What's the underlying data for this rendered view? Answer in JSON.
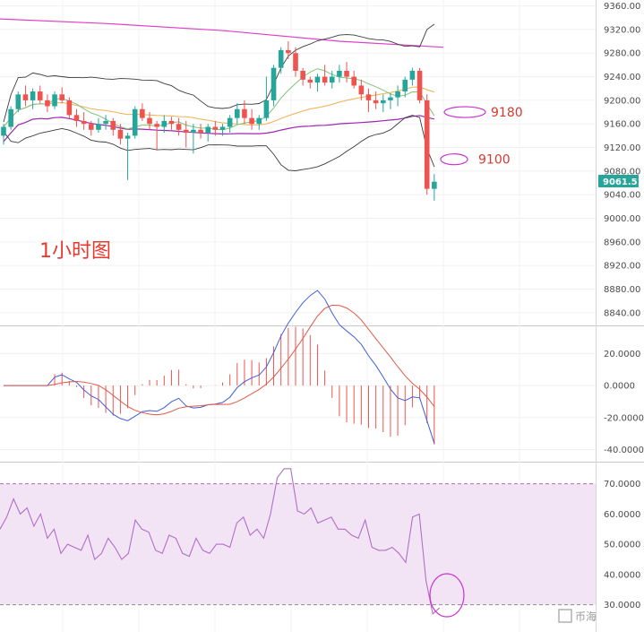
{
  "chart_data": [
    {
      "type": "candlestick",
      "title": "1小时图",
      "y_ticks": [
        "9360.00",
        "9320.00",
        "9280.00",
        "9240.00",
        "9200.00",
        "9160.00",
        "9120.00",
        "9080.00",
        "9040.00",
        "9000.00",
        "8960.00",
        "8920.00",
        "8880.00",
        "8840.00"
      ],
      "ylim": [
        8820,
        9370
      ],
      "last_price": "9061.51",
      "annotations": [
        {
          "label": "9180",
          "price": 9180
        },
        {
          "label": "9100",
          "price": 9100
        }
      ],
      "candles": [
        [
          9140,
          9160,
          9125,
          9155
        ],
        [
          9155,
          9190,
          9150,
          9185
        ],
        [
          9185,
          9215,
          9180,
          9210
        ],
        [
          9210,
          9225,
          9190,
          9200
        ],
        [
          9200,
          9220,
          9185,
          9215
        ],
        [
          9215,
          9225,
          9195,
          9200
        ],
        [
          9200,
          9210,
          9180,
          9190
        ],
        [
          9190,
          9215,
          9185,
          9210
        ],
        [
          9210,
          9222,
          9195,
          9200
        ],
        [
          9200,
          9205,
          9170,
          9175
        ],
        [
          9175,
          9185,
          9155,
          9165
        ],
        [
          9165,
          9180,
          9150,
          9160
        ],
        [
          9160,
          9165,
          9140,
          9150
        ],
        [
          9150,
          9170,
          9145,
          9160
        ],
        [
          9160,
          9175,
          9150,
          9165
        ],
        [
          9165,
          9170,
          9140,
          9150
        ],
        [
          9150,
          9160,
          9125,
          9135
        ],
        [
          9135,
          9145,
          9065,
          9140
        ],
        [
          9140,
          9190,
          9135,
          9185
        ],
        [
          9185,
          9195,
          9165,
          9170
        ],
        [
          9170,
          9180,
          9150,
          9160
        ],
        [
          9160,
          9165,
          9115,
          9155
        ],
        [
          9155,
          9175,
          9145,
          9165
        ],
        [
          9165,
          9172,
          9150,
          9160
        ],
        [
          9160,
          9170,
          9140,
          9150
        ],
        [
          9150,
          9165,
          9120,
          9145
        ],
        [
          9145,
          9160,
          9110,
          9150
        ],
        [
          9150,
          9160,
          9135,
          9145
        ],
        [
          9145,
          9160,
          9130,
          9155
        ],
        [
          9155,
          9165,
          9140,
          9150
        ],
        [
          9150,
          9160,
          9140,
          9155
        ],
        [
          9155,
          9175,
          9145,
          9170
        ],
        [
          9170,
          9195,
          9160,
          9185
        ],
        [
          9185,
          9200,
          9160,
          9170
        ],
        [
          9170,
          9185,
          9150,
          9160
        ],
        [
          9160,
          9175,
          9150,
          9170
        ],
        [
          9170,
          9240,
          9165,
          9200
        ],
        [
          9200,
          9260,
          9190,
          9255
        ],
        [
          9255,
          9290,
          9245,
          9285
        ],
        [
          9285,
          9300,
          9270,
          9280
        ],
        [
          9280,
          9290,
          9240,
          9250
        ],
        [
          9250,
          9255,
          9225,
          9235
        ],
        [
          9235,
          9240,
          9220,
          9230
        ],
        [
          9230,
          9245,
          9215,
          9240
        ],
        [
          9240,
          9260,
          9225,
          9230
        ],
        [
          9230,
          9250,
          9220,
          9240
        ],
        [
          9240,
          9260,
          9230,
          9250
        ],
        [
          9250,
          9265,
          9230,
          9240
        ],
        [
          9240,
          9250,
          9220,
          9225
        ],
        [
          9225,
          9235,
          9200,
          9210
        ],
        [
          9210,
          9220,
          9180,
          9200
        ],
        [
          9200,
          9215,
          9185,
          9195
        ],
        [
          9195,
          9210,
          9180,
          9200
        ],
        [
          9200,
          9212,
          9185,
          9205
        ],
        [
          9205,
          9225,
          9190,
          9215
        ],
        [
          9215,
          9240,
          9205,
          9235
        ],
        [
          9235,
          9255,
          9225,
          9250
        ],
        [
          9250,
          9255,
          9195,
          9200
        ],
        [
          9200,
          9210,
          9040,
          9050
        ],
        [
          9050,
          9075,
          9030,
          9062
        ]
      ]
    },
    {
      "type": "line",
      "name": "MACD",
      "y_ticks": [
        "20.0000",
        "0.0000",
        "-20.0000",
        "-40.0000"
      ],
      "ylim": [
        -47,
        37
      ]
    },
    {
      "type": "line",
      "name": "RSI",
      "y_ticks": [
        "70.0000",
        "60.0000",
        "50.0000",
        "40.0000",
        "30.0000"
      ],
      "ylim": [
        21,
        77
      ],
      "band": [
        30,
        70
      ],
      "values": [
        55,
        59,
        65,
        60,
        62,
        56,
        60,
        52,
        55,
        47,
        50,
        49,
        48,
        53,
        45,
        47,
        52,
        49,
        45,
        47,
        58,
        55,
        54,
        48,
        47,
        53,
        52,
        47,
        46,
        52,
        48,
        47,
        50,
        50,
        49,
        57,
        59,
        53,
        55,
        52,
        60,
        72,
        75,
        75,
        61,
        60,
        62,
        57,
        58,
        59,
        55,
        55,
        53,
        52,
        58,
        49,
        48,
        48,
        49,
        47,
        44,
        59,
        60,
        38,
        27,
        29
      ]
    },
    {
      "type": "line",
      "name": "watermark",
      "watermark": "币海"
    }
  ],
  "colors": {
    "up": "#26a69a",
    "down": "#ef5350",
    "bb": "#3b3b3b",
    "bb_upper_long": "#e040c8",
    "ma_mid": "#9c27b0",
    "ma_green": "#7cc47c",
    "ma_orange": "#f0b050",
    "macd_line": "#3f5fd8",
    "signal_line": "#e05a4a",
    "hist_neg": "#ef5350",
    "rsi_line": "#b06fc8",
    "rsi_band": "#f3e4f5",
    "ellipse": "#c833d0",
    "price_tag": "#26a69a",
    "anno_text": "#d43a2f"
  }
}
